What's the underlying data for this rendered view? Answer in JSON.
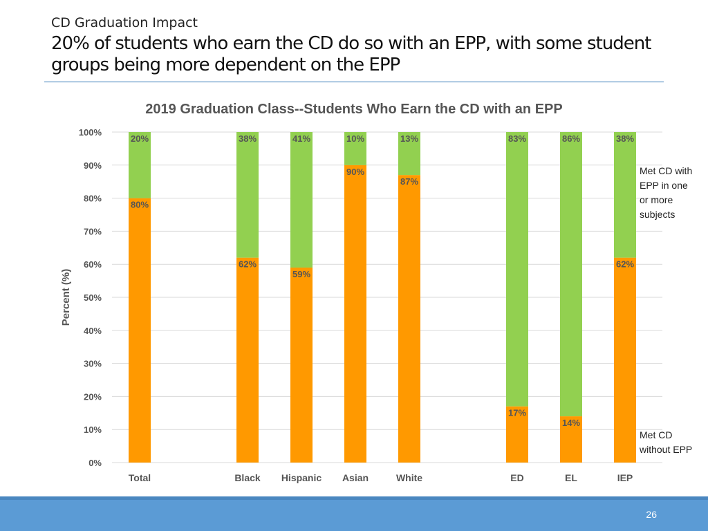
{
  "slide": {
    "subtitle": "CD Graduation Impact",
    "title": "20% of students who earn the CD do so with an EPP, with some student groups being more dependent on the EPP",
    "page_number": "26"
  },
  "chart_data": {
    "type": "bar",
    "stacked": true,
    "title": "2019 Graduation Class--Students Who Earn the CD with an EPP",
    "xlabel": "",
    "ylabel": "Percent (%)",
    "ylim": [
      0,
      100
    ],
    "y_ticks": [
      0,
      10,
      20,
      30,
      40,
      50,
      60,
      70,
      80,
      90,
      100
    ],
    "y_tick_suffix": "%",
    "grid": true,
    "categories": [
      "Total",
      "Black",
      "Hispanic",
      "Asian",
      "White",
      "ED",
      "EL",
      "IEP"
    ],
    "series": [
      {
        "name": "Met CD without EPP",
        "color": "#ff9900",
        "values": [
          80,
          62,
          59,
          90,
          87,
          17,
          14,
          62
        ]
      },
      {
        "name": "Met CD with EPP in one or more subjects",
        "color": "#92d050",
        "values": [
          20,
          38,
          41,
          10,
          13,
          83,
          86,
          38
        ]
      }
    ],
    "legend_placement": "right (labels beside the last bar)"
  }
}
